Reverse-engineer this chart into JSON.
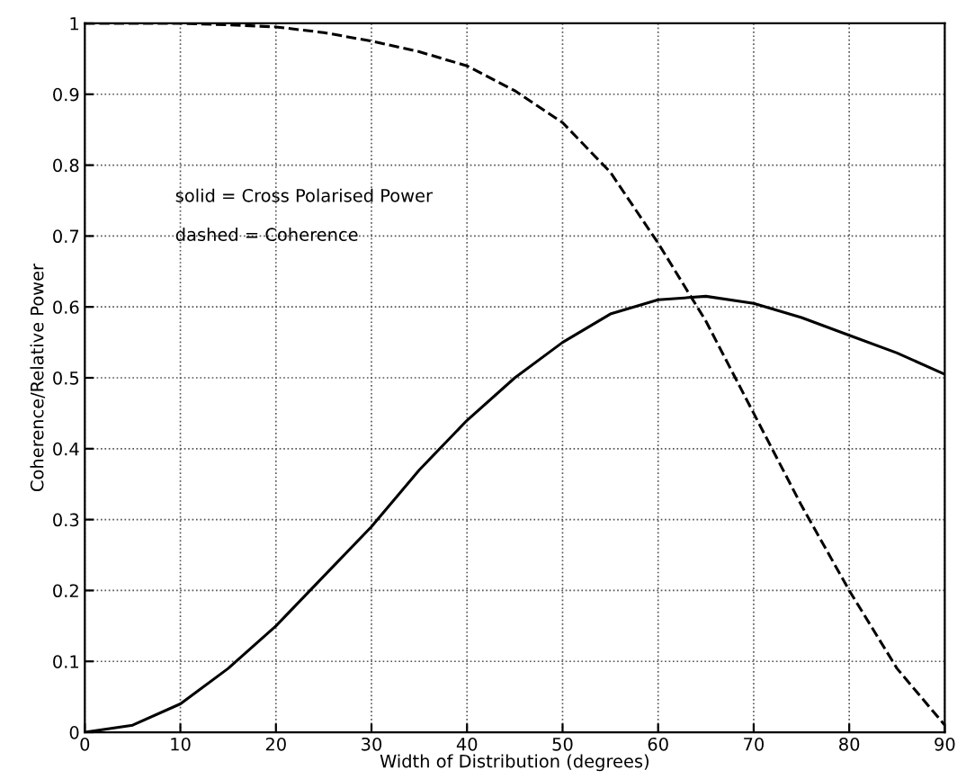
{
  "chart_data": {
    "type": "line",
    "xlabel": "Width of Distribution (degrees)",
    "ylabel": "Coherence/Relative Power",
    "annotations": [
      "solid = Cross Polarised Power",
      "dashed = Coherence"
    ],
    "x": [
      0,
      5,
      10,
      15,
      20,
      25,
      30,
      35,
      40,
      45,
      50,
      55,
      60,
      65,
      70,
      75,
      80,
      85,
      90
    ],
    "series": [
      {
        "color": "#000000",
        "line_style": "solid",
        "values": [
          0,
          0.01,
          0.04,
          0.09,
          0.15,
          0.22,
          0.29,
          0.37,
          0.44,
          0.5,
          0.55,
          0.59,
          0.61,
          0.615,
          0.605,
          0.585,
          0.56,
          0.535,
          0.505
        ]
      },
      {
        "color": "#000000",
        "line_style": "dashed",
        "values": [
          1,
          1,
          1,
          0.998,
          0.995,
          0.987,
          0.975,
          0.96,
          0.94,
          0.905,
          0.86,
          0.79,
          0.69,
          0.58,
          0.45,
          0.32,
          0.2,
          0.09,
          0.01
        ]
      }
    ],
    "xlim": [
      0,
      90
    ],
    "ylim": [
      0,
      1
    ],
    "xticks": [
      0,
      10,
      20,
      30,
      40,
      50,
      60,
      70,
      80,
      90
    ],
    "yticks": [
      0,
      0.1,
      0.2,
      0.3,
      0.4,
      0.5,
      0.6,
      0.7,
      0.8,
      0.9,
      1
    ],
    "grid": true,
    "legend": false
  }
}
